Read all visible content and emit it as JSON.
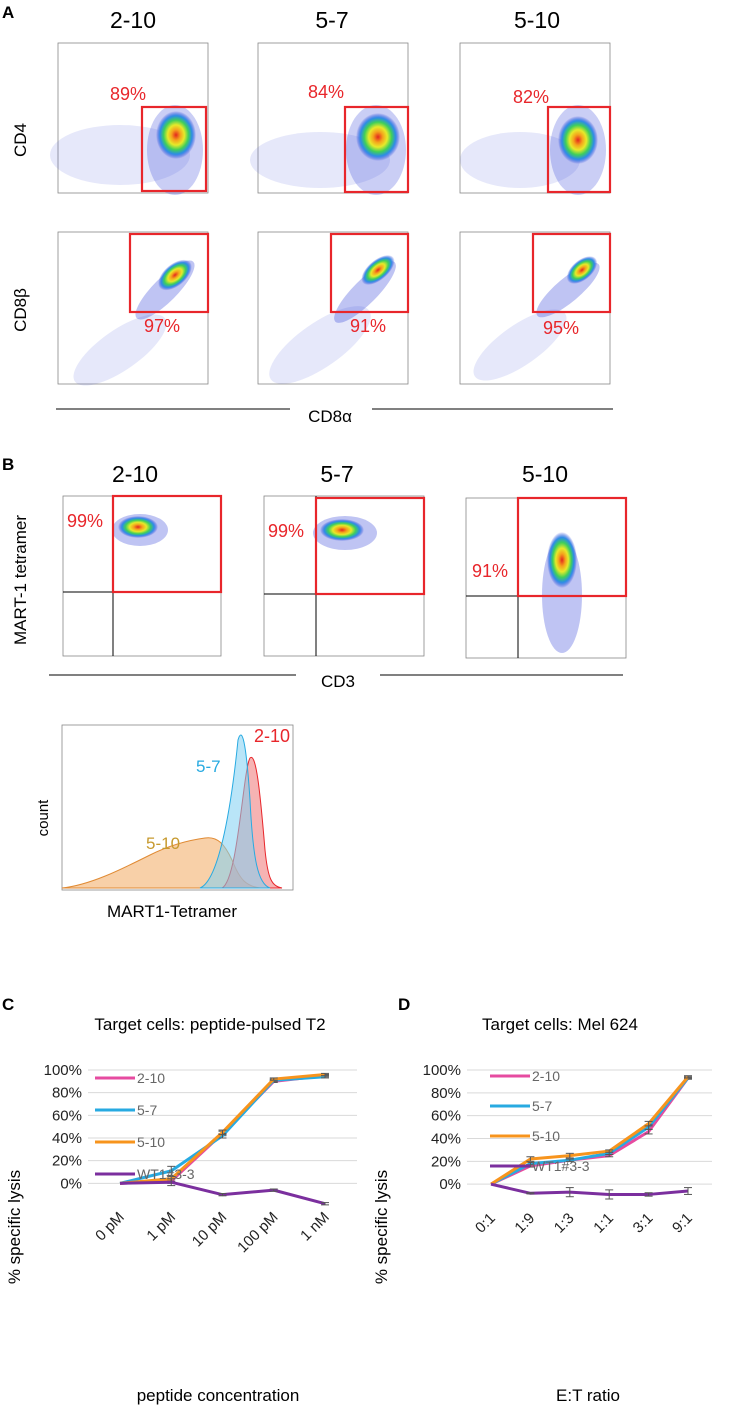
{
  "panels": {
    "A": "A",
    "B": "B",
    "C": "C",
    "D": "D"
  },
  "clones": [
    "2-10",
    "5-7",
    "5-10"
  ],
  "panelA": {
    "cd4_label": "CD4",
    "cd8b_label": "CD8β",
    "x_label": "CD8α",
    "cd4_percents": [
      "89%",
      "84%",
      "82%"
    ],
    "cd8b_percents": [
      "97%",
      "91%",
      "95%"
    ]
  },
  "panelB": {
    "y_label": "MART-1 tetramer",
    "x_label": "CD3",
    "percents": [
      "99%",
      "99%",
      "91%"
    ],
    "histogram": {
      "x_label": "MART1-Tetramer",
      "y_label": "count",
      "labels": [
        "2-10",
        "5-7",
        "5-10"
      ]
    }
  },
  "colors": {
    "gate": "#e8262b",
    "clone_2_10": "#e64ba0",
    "clone_5_7": "#27aae1",
    "clone_5_10": "#f7941d",
    "wt1": "#7b2f9e"
  },
  "chart_data": [
    {
      "type": "line",
      "panel": "C",
      "title": "Target cells: peptide-pulsed T2",
      "xlabel": "peptide concentration",
      "ylabel": "% specific lysis",
      "categories": [
        "0 pM",
        "1 pM",
        "10 pM",
        "100 pM",
        "1 nM"
      ],
      "yticks": [
        "0%",
        "20%",
        "40%",
        "60%",
        "80%",
        "100%"
      ],
      "ylim": [
        -20,
        100
      ],
      "grid": true,
      "legend": "top-left",
      "series": [
        {
          "name": "2-10",
          "values": [
            0,
            2,
            44,
            90,
            95
          ],
          "err": [
            0,
            2,
            2,
            1,
            1
          ]
        },
        {
          "name": "5-7",
          "values": [
            0,
            11,
            42,
            91,
            94
          ],
          "err": [
            0,
            4,
            2,
            1,
            1
          ]
        },
        {
          "name": "5-10",
          "values": [
            0,
            4,
            45,
            92,
            96
          ],
          "err": [
            0,
            2,
            2,
            1,
            1
          ]
        },
        {
          "name": "WT1#3-3",
          "values": [
            0,
            1,
            -10,
            -6,
            -18
          ],
          "err": [
            0,
            3,
            1,
            1,
            1
          ]
        }
      ]
    },
    {
      "type": "line",
      "panel": "D",
      "title": "Target cells: Mel 624",
      "xlabel": "E:T ratio",
      "ylabel": "% specific lysis",
      "categories": [
        "0:1",
        "1:9",
        "1:3",
        "1:1",
        "3:1",
        "9:1"
      ],
      "yticks": [
        "0%",
        "20%",
        "40%",
        "60%",
        "80%",
        "100%"
      ],
      "ylim": [
        -20,
        100
      ],
      "grid": true,
      "legend": "top-left",
      "series": [
        {
          "name": "2-10",
          "values": [
            0,
            16,
            21,
            25,
            46,
            93
          ],
          "err": [
            0,
            1,
            1,
            1,
            2,
            1
          ]
        },
        {
          "name": "5-7",
          "values": [
            0,
            18,
            21,
            27,
            50,
            93
          ],
          "err": [
            0,
            1,
            1,
            1,
            2,
            1
          ]
        },
        {
          "name": "5-10",
          "values": [
            0,
            22,
            25,
            29,
            53,
            94
          ],
          "err": [
            0,
            2,
            2,
            1,
            2,
            1
          ]
        },
        {
          "name": "WT1#3-3",
          "values": [
            0,
            -8,
            -7,
            -9,
            -9,
            -6
          ],
          "err": [
            0,
            0.5,
            4,
            4,
            1.5,
            3
          ]
        }
      ]
    }
  ]
}
